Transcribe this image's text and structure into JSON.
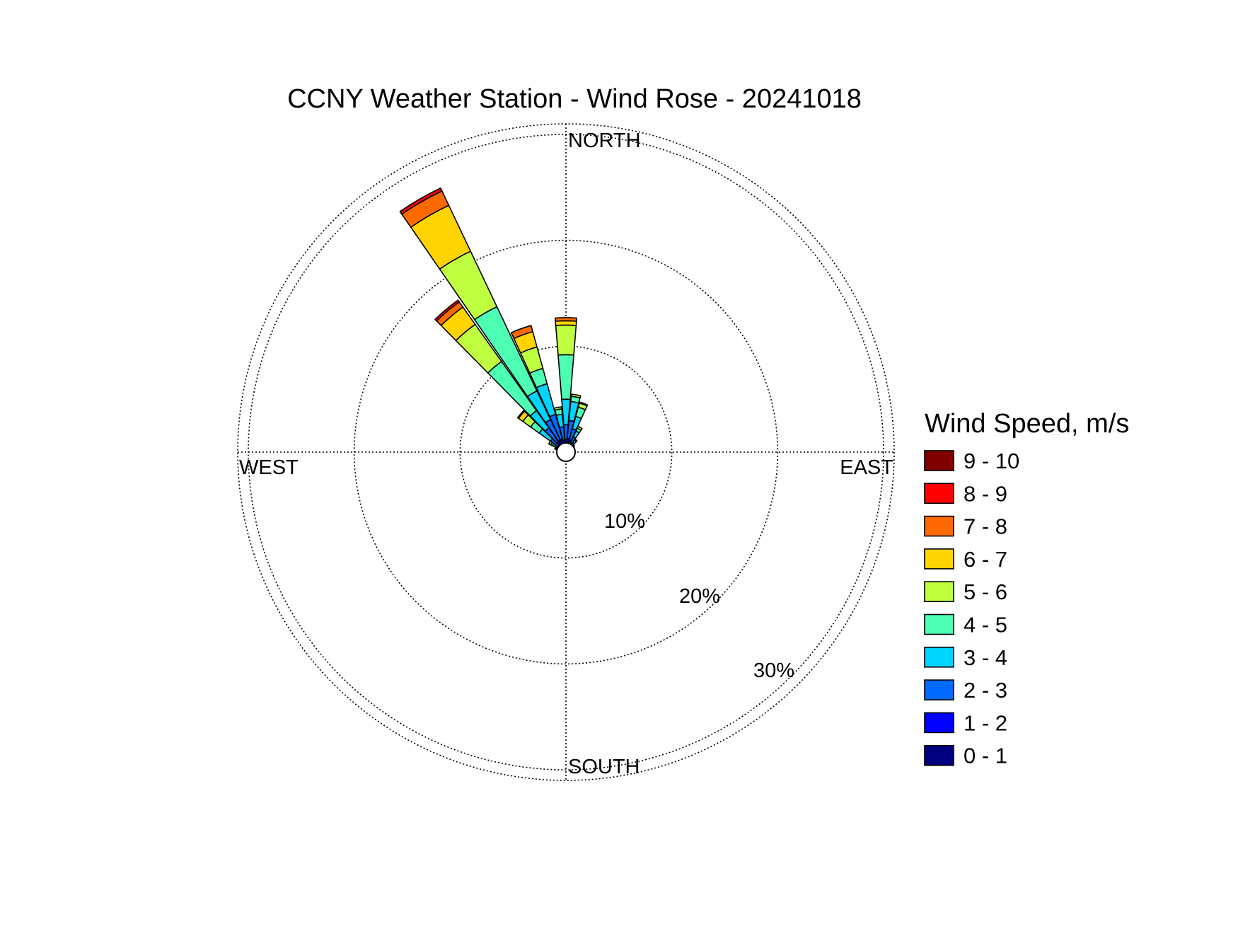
{
  "chart_data": {
    "type": "wind-rose",
    "title": "CCNY Weather Station - Wind Rose - 20241018",
    "directions": [
      "NORTH",
      "EAST",
      "SOUTH",
      "WEST"
    ],
    "radial_ticks": [
      "10%",
      "20%",
      "30%"
    ],
    "radial_tick_values": [
      10,
      20,
      30
    ],
    "r_max": 31,
    "grid": true,
    "legend_position": "right",
    "legend_title": "Wind Speed, m/s",
    "speed_bins": [
      {
        "label": "9 - 10",
        "color": "#800000"
      },
      {
        "label": "8 - 9",
        "color": "#ff0000"
      },
      {
        "label": "7 - 8",
        "color": "#ff6a00"
      },
      {
        "label": "6 - 7",
        "color": "#ffd400"
      },
      {
        "label": "5 - 6",
        "color": "#bfff40"
      },
      {
        "label": "4 - 5",
        "color": "#4dffb3"
      },
      {
        "label": "3 - 4",
        "color": "#00d5ff"
      },
      {
        "label": "2 - 3",
        "color": "#006aff"
      },
      {
        "label": "1 - 2",
        "color": "#0000ff"
      },
      {
        "label": "0 - 1",
        "color": "#000080"
      }
    ],
    "sectors": [
      {
        "direction_deg": 0,
        "cumulative_pct": [
          0.6,
          1.2,
          2.6,
          5.0,
          9.2,
          12.0,
          12.4,
          12.7,
          12.7,
          12.7
        ]
      },
      {
        "direction_deg": 10,
        "cumulative_pct": [
          0.6,
          1.3,
          3.0,
          4.8,
          5.3,
          5.5,
          5.5,
          5.5,
          5.5,
          5.5
        ]
      },
      {
        "direction_deg": 20,
        "cumulative_pct": [
          0.6,
          1.2,
          2.3,
          3.5,
          4.4,
          4.8,
          4.9,
          4.9,
          4.9,
          4.9
        ]
      },
      {
        "direction_deg": 30,
        "cumulative_pct": [
          0.5,
          1.0,
          1.6,
          2.2,
          2.5,
          2.7,
          2.7,
          2.7,
          2.7,
          2.7
        ]
      },
      {
        "direction_deg": 40,
        "cumulative_pct": [
          0.4,
          0.8,
          1.1,
          1.4,
          1.5,
          1.5,
          1.5,
          1.5,
          1.5,
          1.5
        ]
      },
      {
        "direction_deg": 50,
        "cumulative_pct": [
          0.4,
          0.6,
          0.8,
          0.9,
          1.0,
          1.0,
          1.0,
          1.0,
          1.0,
          1.0
        ]
      },
      {
        "direction_deg": 60,
        "cumulative_pct": [
          0.3,
          0.5,
          0.6,
          0.7,
          0.7,
          0.7,
          0.7,
          0.7,
          0.7,
          0.7
        ]
      },
      {
        "direction_deg": 70,
        "cumulative_pct": [
          0.3,
          0.4,
          0.5,
          0.5,
          0.5,
          0.5,
          0.5,
          0.5,
          0.5,
          0.5
        ]
      },
      {
        "direction_deg": 80,
        "cumulative_pct": [
          0.3,
          0.4,
          0.4,
          0.4,
          0.4,
          0.4,
          0.4,
          0.4,
          0.4,
          0.4
        ]
      },
      {
        "direction_deg": 90,
        "cumulative_pct": [
          0.2,
          0.3,
          0.3,
          0.3,
          0.3,
          0.3,
          0.3,
          0.3,
          0.3,
          0.3
        ]
      },
      {
        "direction_deg": 100,
        "cumulative_pct": [
          0.2,
          0.3,
          0.3,
          0.3,
          0.3,
          0.3,
          0.3,
          0.3,
          0.3,
          0.3
        ]
      },
      {
        "direction_deg": 110,
        "cumulative_pct": [
          0.2,
          0.3,
          0.3,
          0.3,
          0.3,
          0.3,
          0.3,
          0.3,
          0.3,
          0.3
        ]
      },
      {
        "direction_deg": 120,
        "cumulative_pct": [
          0.2,
          0.2,
          0.2,
          0.2,
          0.2,
          0.2,
          0.2,
          0.2,
          0.2,
          0.2
        ]
      },
      {
        "direction_deg": 130,
        "cumulative_pct": [
          0.2,
          0.2,
          0.2,
          0.2,
          0.2,
          0.2,
          0.2,
          0.2,
          0.2,
          0.2
        ]
      },
      {
        "direction_deg": 140,
        "cumulative_pct": [
          0.2,
          0.2,
          0.2,
          0.2,
          0.2,
          0.2,
          0.2,
          0.2,
          0.2,
          0.2
        ]
      },
      {
        "direction_deg": 150,
        "cumulative_pct": [
          0.2,
          0.2,
          0.2,
          0.2,
          0.2,
          0.2,
          0.2,
          0.2,
          0.2,
          0.2
        ]
      },
      {
        "direction_deg": 160,
        "cumulative_pct": [
          0.2,
          0.2,
          0.2,
          0.2,
          0.2,
          0.2,
          0.2,
          0.2,
          0.2,
          0.2
        ]
      },
      {
        "direction_deg": 170,
        "cumulative_pct": [
          0.2,
          0.2,
          0.2,
          0.2,
          0.2,
          0.2,
          0.2,
          0.2,
          0.2,
          0.2
        ]
      },
      {
        "direction_deg": 180,
        "cumulative_pct": [
          0.2,
          0.2,
          0.2,
          0.2,
          0.2,
          0.2,
          0.2,
          0.2,
          0.2,
          0.2
        ]
      },
      {
        "direction_deg": 190,
        "cumulative_pct": [
          0.2,
          0.2,
          0.2,
          0.2,
          0.2,
          0.2,
          0.2,
          0.2,
          0.2,
          0.2
        ]
      },
      {
        "direction_deg": 200,
        "cumulative_pct": [
          0.2,
          0.2,
          0.2,
          0.2,
          0.2,
          0.2,
          0.2,
          0.2,
          0.2,
          0.2
        ]
      },
      {
        "direction_deg": 210,
        "cumulative_pct": [
          0.2,
          0.2,
          0.2,
          0.2,
          0.2,
          0.2,
          0.2,
          0.2,
          0.2,
          0.2
        ]
      },
      {
        "direction_deg": 220,
        "cumulative_pct": [
          0.2,
          0.2,
          0.2,
          0.2,
          0.2,
          0.2,
          0.2,
          0.2,
          0.2,
          0.2
        ]
      },
      {
        "direction_deg": 230,
        "cumulative_pct": [
          0.2,
          0.3,
          0.3,
          0.3,
          0.3,
          0.3,
          0.3,
          0.3,
          0.3,
          0.3
        ]
      },
      {
        "direction_deg": 240,
        "cumulative_pct": [
          0.2,
          0.3,
          0.3,
          0.3,
          0.3,
          0.3,
          0.3,
          0.3,
          0.3,
          0.3
        ]
      },
      {
        "direction_deg": 250,
        "cumulative_pct": [
          0.3,
          0.4,
          0.4,
          0.4,
          0.4,
          0.4,
          0.4,
          0.4,
          0.4,
          0.4
        ]
      },
      {
        "direction_deg": 260,
        "cumulative_pct": [
          0.3,
          0.4,
          0.5,
          0.5,
          0.5,
          0.5,
          0.5,
          0.5,
          0.5,
          0.5
        ]
      },
      {
        "direction_deg": 270,
        "cumulative_pct": [
          0.3,
          0.5,
          0.6,
          0.6,
          0.6,
          0.6,
          0.6,
          0.6,
          0.6,
          0.6
        ]
      },
      {
        "direction_deg": 280,
        "cumulative_pct": [
          0.3,
          0.5,
          0.7,
          0.8,
          0.8,
          0.8,
          0.8,
          0.8,
          0.8,
          0.8
        ]
      },
      {
        "direction_deg": 290,
        "cumulative_pct": [
          0.4,
          0.6,
          0.9,
          1.0,
          1.1,
          1.1,
          1.1,
          1.1,
          1.1,
          1.1
        ]
      },
      {
        "direction_deg": 300,
        "cumulative_pct": [
          0.4,
          0.7,
          1.1,
          1.4,
          1.6,
          1.8,
          1.8,
          1.8,
          1.8,
          1.8
        ]
      },
      {
        "direction_deg": 310,
        "cumulative_pct": [
          0.5,
          0.9,
          1.8,
          3.1,
          4.1,
          5.0,
          5.5,
          5.6,
          5.6,
          5.6
        ]
      },
      {
        "direction_deg": 320,
        "cumulative_pct": [
          0.6,
          1.2,
          2.8,
          4.8,
          10.5,
          14.8,
          16.8,
          17.4,
          17.6,
          17.6
        ]
      },
      {
        "direction_deg": 330,
        "cumulative_pct": [
          0.6,
          1.3,
          3.4,
          6.4,
          15.2,
          21.0,
          25.8,
          27.3,
          27.6,
          27.6
        ]
      },
      {
        "direction_deg": 340,
        "cumulative_pct": [
          0.6,
          1.3,
          3.7,
          6.7,
          8.2,
          10.3,
          11.8,
          12.4,
          12.4,
          12.4
        ]
      },
      {
        "direction_deg": 350,
        "cumulative_pct": [
          0.6,
          1.2,
          2.4,
          3.6,
          4.1,
          4.3,
          4.3,
          4.3,
          4.3,
          4.3
        ]
      }
    ]
  }
}
